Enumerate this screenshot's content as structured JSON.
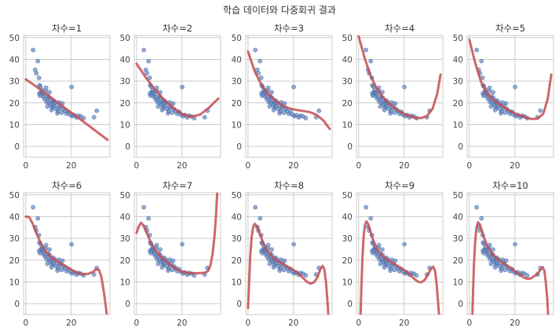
{
  "figure_title": "학습 데이터와 다중회귀 결과",
  "colors": {
    "points": "#4c72b0",
    "curve": "#c44e52",
    "grid": "#cccccc"
  },
  "chart_data": {
    "type": "scatter",
    "grid": true,
    "xlim": [
      -1,
      37
    ],
    "ylim": [
      -5,
      51
    ],
    "x_ticks": [
      0,
      20
    ],
    "y_ticks": [
      0,
      10,
      20,
      30,
      40,
      50
    ],
    "training_points": [
      [
        3.2,
        44.3
      ],
      [
        4.1,
        35.2
      ],
      [
        4.6,
        33.6
      ],
      [
        5.3,
        39.2
      ],
      [
        5.8,
        31.5
      ],
      [
        6.0,
        28.1
      ],
      [
        6.4,
        27.5
      ],
      [
        6.7,
        25.0
      ],
      [
        5.9,
        24.3
      ],
      [
        6.2,
        23.3
      ],
      [
        7.1,
        26.0
      ],
      [
        7.3,
        24.6
      ],
      [
        7.6,
        22.9
      ],
      [
        8.0,
        23.8
      ],
      [
        8.3,
        21.7
      ],
      [
        8.7,
        25.4
      ],
      [
        9.1,
        20.4
      ],
      [
        9.4,
        21.9
      ],
      [
        9.8,
        23.0
      ],
      [
        10.2,
        20.0
      ],
      [
        10.5,
        22.3
      ],
      [
        10.9,
        19.1
      ],
      [
        11.2,
        20.8
      ],
      [
        11.6,
        17.9
      ],
      [
        11.9,
        19.8
      ],
      [
        12.3,
        18.4
      ],
      [
        12.8,
        20.3
      ],
      [
        13.3,
        17.2
      ],
      [
        13.7,
        18.9
      ],
      [
        14.2,
        16.2
      ],
      [
        14.8,
        17.5
      ],
      [
        15.3,
        18.3
      ],
      [
        15.8,
        15.5
      ],
      [
        16.5,
        17.1
      ],
      [
        17.2,
        16.3
      ],
      [
        17.9,
        15.0
      ],
      [
        18.7,
        15.9
      ],
      [
        19.5,
        14.6
      ],
      [
        20.4,
        13.9
      ],
      [
        21.3,
        14.4
      ],
      [
        22.3,
        13.3
      ],
      [
        23.1,
        14.1
      ],
      [
        24.2,
        13.8
      ],
      [
        25.4,
        13.0
      ],
      [
        20.1,
        27.3
      ],
      [
        30.0,
        13.4
      ],
      [
        31.2,
        16.4
      ],
      [
        12.1,
        21.1
      ],
      [
        10.4,
        24.9
      ],
      [
        8.9,
        26.9
      ],
      [
        9.5,
        18.3
      ],
      [
        11.3,
        16.7
      ],
      [
        13.9,
        15.2
      ],
      [
        16.1,
        19.7
      ],
      [
        14.6,
        20.2
      ]
    ],
    "panels": [
      {
        "title": "차수=1",
        "degree": 1,
        "curve": [
          [
            0,
            30.8
          ],
          [
            4,
            27.9
          ],
          [
            8,
            24.8
          ],
          [
            12,
            21.7
          ],
          [
            16,
            18.6
          ],
          [
            20,
            15.5
          ],
          [
            24,
            12.4
          ],
          [
            28,
            9.3
          ],
          [
            32,
            6.1
          ],
          [
            36,
            3.0
          ]
        ]
      },
      {
        "title": "차수=2",
        "degree": 2,
        "curve": [
          [
            0,
            38.0
          ],
          [
            4,
            31.8
          ],
          [
            8,
            26.3
          ],
          [
            12,
            21.6
          ],
          [
            16,
            17.8
          ],
          [
            20,
            15.0
          ],
          [
            24,
            13.6
          ],
          [
            28,
            14.6
          ],
          [
            32,
            17.9
          ],
          [
            36,
            22.0
          ]
        ]
      },
      {
        "title": "차수=3",
        "degree": 3,
        "curve": [
          [
            0,
            43.6
          ],
          [
            3,
            34.3
          ],
          [
            6,
            28.1
          ],
          [
            9,
            24.0
          ],
          [
            12,
            21.1
          ],
          [
            15,
            18.9
          ],
          [
            18,
            17.6
          ],
          [
            21,
            16.8
          ],
          [
            24,
            16.3
          ],
          [
            27,
            15.8
          ],
          [
            30,
            14.6
          ],
          [
            33,
            12.1
          ],
          [
            36,
            8.0
          ]
        ]
      },
      {
        "title": "차수=4",
        "degree": 4,
        "curve": [
          [
            0,
            50.5
          ],
          [
            2.5,
            41.0
          ],
          [
            5,
            33.0
          ],
          [
            7.5,
            27.5
          ],
          [
            10,
            23.5
          ],
          [
            12.5,
            20.5
          ],
          [
            15,
            18.2
          ],
          [
            17.5,
            16.4
          ],
          [
            20,
            15.0
          ],
          [
            22.5,
            13.9
          ],
          [
            25,
            13.1
          ],
          [
            27.5,
            13.0
          ],
          [
            30,
            14.0
          ],
          [
            32.5,
            17.3
          ],
          [
            34.5,
            24.0
          ],
          [
            36,
            33.0
          ]
        ]
      },
      {
        "title": "차수=5",
        "degree": 5,
        "curve": [
          [
            0,
            49.0
          ],
          [
            2.5,
            38.5
          ],
          [
            5,
            30.0
          ],
          [
            7.5,
            25.0
          ],
          [
            10,
            21.9
          ],
          [
            12.5,
            19.8
          ],
          [
            15,
            18.1
          ],
          [
            17.5,
            16.6
          ],
          [
            20,
            15.2
          ],
          [
            22.5,
            14.1
          ],
          [
            25,
            13.2
          ],
          [
            27.5,
            12.6
          ],
          [
            30,
            12.7
          ],
          [
            32.5,
            15.0
          ],
          [
            34.5,
            22.0
          ],
          [
            36,
            33.0
          ]
        ]
      },
      {
        "title": "차수=6",
        "degree": 6,
        "curve": [
          [
            0,
            40.0
          ],
          [
            1.5,
            39.8
          ],
          [
            3,
            36.8
          ],
          [
            5,
            31.5
          ],
          [
            7,
            27.0
          ],
          [
            9,
            23.7
          ],
          [
            11,
            21.5
          ],
          [
            13,
            20.0
          ],
          [
            15,
            18.8
          ],
          [
            17.5,
            17.3
          ],
          [
            20,
            15.7
          ],
          [
            22.5,
            14.3
          ],
          [
            25,
            13.6
          ],
          [
            27.5,
            13.7
          ],
          [
            29.5,
            14.6
          ],
          [
            31,
            15.8
          ],
          [
            32.2,
            15.5
          ],
          [
            33.3,
            12.0
          ],
          [
            34.4,
            5.0
          ],
          [
            35.4,
            -3.0
          ],
          [
            36,
            -8.0
          ]
        ]
      },
      {
        "title": "차수=7",
        "degree": 7,
        "curve": [
          [
            0,
            32.5
          ],
          [
            1,
            35.5
          ],
          [
            2,
            37.2
          ],
          [
            3,
            36.0
          ],
          [
            4.5,
            32.5
          ],
          [
            6,
            28.8
          ],
          [
            8,
            25.1
          ],
          [
            10,
            22.4
          ],
          [
            12,
            20.4
          ],
          [
            14,
            18.6
          ],
          [
            16,
            17.0
          ],
          [
            18,
            15.7
          ],
          [
            20,
            14.8
          ],
          [
            22.5,
            14.2
          ],
          [
            25,
            14.0
          ],
          [
            27.5,
            14.0
          ],
          [
            30,
            14.2
          ],
          [
            31.5,
            15.0
          ],
          [
            32.5,
            17.5
          ],
          [
            33.5,
            23.0
          ],
          [
            34.4,
            32.0
          ],
          [
            35,
            41.0
          ],
          [
            35.5,
            51.0
          ]
        ]
      },
      {
        "title": "차수=8",
        "degree": 8,
        "curve": [
          [
            0,
            -2.0
          ],
          [
            0.5,
            10.0
          ],
          [
            1,
            22.0
          ],
          [
            1.6,
            30.5
          ],
          [
            2.3,
            35.5
          ],
          [
            3,
            36.7
          ],
          [
            4,
            35.4
          ],
          [
            5,
            32.5
          ],
          [
            6.5,
            28.5
          ],
          [
            8,
            25.2
          ],
          [
            10,
            22.3
          ],
          [
            12,
            20.4
          ],
          [
            14,
            19.0
          ],
          [
            16,
            17.8
          ],
          [
            18,
            16.7
          ],
          [
            20,
            15.5
          ],
          [
            22,
            14.0
          ],
          [
            24,
            12.0
          ],
          [
            26,
            10.0
          ],
          [
            27.5,
            9.2
          ],
          [
            29,
            9.8
          ],
          [
            30.5,
            12.0
          ],
          [
            31.8,
            15.7
          ],
          [
            32.8,
            17.4
          ],
          [
            33.6,
            15.8
          ],
          [
            34.3,
            10.0
          ],
          [
            34.9,
            2.0
          ],
          [
            35.4,
            -6.0
          ]
        ]
      },
      {
        "title": "차수=9",
        "degree": 9,
        "curve": [
          [
            0.8,
            -6.0
          ],
          [
            1.2,
            8.0
          ],
          [
            1.6,
            20.0
          ],
          [
            2.1,
            30.0
          ],
          [
            2.7,
            36.0
          ],
          [
            3.4,
            37.8
          ],
          [
            4.2,
            36.5
          ],
          [
            5.2,
            33.0
          ],
          [
            6.5,
            28.8
          ],
          [
            8,
            25.2
          ],
          [
            10,
            22.3
          ],
          [
            12,
            20.6
          ],
          [
            14,
            19.2
          ],
          [
            16,
            18.0
          ],
          [
            18,
            16.8
          ],
          [
            20,
            15.5
          ],
          [
            22,
            13.8
          ],
          [
            24,
            11.8
          ],
          [
            26,
            10.1
          ],
          [
            27.5,
            9.8
          ],
          [
            29,
            10.9
          ],
          [
            30.5,
            13.3
          ],
          [
            31.8,
            16.0
          ],
          [
            32.8,
            17.0
          ],
          [
            33.6,
            15.0
          ],
          [
            34.3,
            9.0
          ],
          [
            34.9,
            1.0
          ],
          [
            35.4,
            -6.0
          ]
        ]
      },
      {
        "title": "차수=10",
        "degree": 10,
        "curve": [
          [
            1.3,
            -6.0
          ],
          [
            1.6,
            6.0
          ],
          [
            2.0,
            18.0
          ],
          [
            2.5,
            28.0
          ],
          [
            3.1,
            34.8
          ],
          [
            3.8,
            37.4
          ],
          [
            4.6,
            36.4
          ],
          [
            5.6,
            33.2
          ],
          [
            6.8,
            29.2
          ],
          [
            8.2,
            25.8
          ],
          [
            10,
            22.9
          ],
          [
            12,
            20.9
          ],
          [
            14,
            19.4
          ],
          [
            16,
            18.0
          ],
          [
            18,
            16.6
          ],
          [
            20,
            15.0
          ],
          [
            22,
            13.4
          ],
          [
            24,
            12.0
          ],
          [
            25.5,
            11.4
          ],
          [
            27,
            11.6
          ],
          [
            28.5,
            12.6
          ],
          [
            30,
            13.9
          ],
          [
            31.3,
            15.6
          ],
          [
            32.3,
            16.8
          ],
          [
            33,
            15.0
          ],
          [
            33.6,
            10.0
          ],
          [
            34.2,
            3.0
          ],
          [
            34.7,
            -6.0
          ]
        ]
      }
    ]
  }
}
